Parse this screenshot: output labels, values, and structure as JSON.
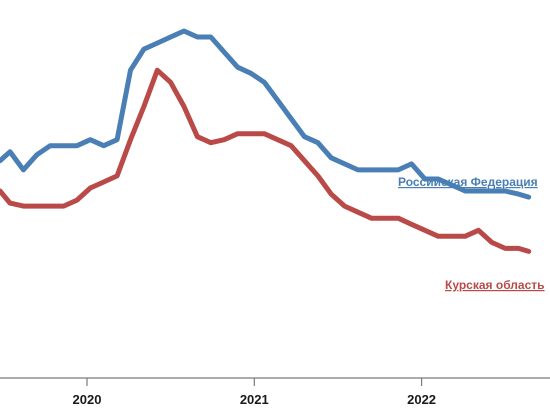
{
  "chart_data": {
    "type": "line",
    "title": "",
    "xlabel": "",
    "ylabel": "",
    "grid": false,
    "x_ticks": [
      {
        "label": "2020",
        "x": 2020.0
      },
      {
        "label": "2021",
        "x": 2021.0
      },
      {
        "label": "2022",
        "x": 2022.0
      }
    ],
    "xlim": [
      2019.48,
      2022.66
    ],
    "ylim": [
      0,
      100
    ],
    "series": [
      {
        "name": "Российская Федерация",
        "color": "#4a7fb5",
        "x": [
          2019.48,
          2019.54,
          2019.62,
          2019.7,
          2019.78,
          2019.86,
          2019.94,
          2020.02,
          2020.1,
          2020.18,
          2020.26,
          2020.34,
          2020.42,
          2020.5,
          2020.58,
          2020.66,
          2020.74,
          2020.82,
          2020.9,
          2020.98,
          2021.06,
          2021.14,
          2021.22,
          2021.3,
          2021.38,
          2021.46,
          2021.54,
          2021.62,
          2021.7,
          2021.78,
          2021.86,
          2021.94,
          2022.02,
          2022.1,
          2022.18,
          2022.26,
          2022.34,
          2022.42,
          2022.5,
          2022.58,
          2022.64
        ],
        "values": [
          58,
          61,
          55,
          60,
          63,
          63,
          63,
          65,
          63,
          65,
          88,
          95,
          97,
          99,
          101,
          99,
          99,
          94,
          89,
          87,
          84,
          78,
          72,
          66,
          64,
          59,
          57,
          55,
          55,
          55,
          55,
          57,
          52,
          52,
          50,
          48,
          48,
          48,
          48,
          47,
          46
        ]
      },
      {
        "name": "Курская область",
        "color": "#b94a48",
        "x": [
          2019.48,
          2019.54,
          2019.62,
          2019.7,
          2019.78,
          2019.86,
          2019.94,
          2020.02,
          2020.1,
          2020.18,
          2020.26,
          2020.34,
          2020.42,
          2020.5,
          2020.58,
          2020.66,
          2020.74,
          2020.82,
          2020.9,
          2020.98,
          2021.06,
          2021.14,
          2021.22,
          2021.3,
          2021.38,
          2021.46,
          2021.54,
          2021.62,
          2021.7,
          2021.78,
          2021.86,
          2021.94,
          2022.02,
          2022.1,
          2022.18,
          2022.26,
          2022.34,
          2022.42,
          2022.5,
          2022.58,
          2022.64
        ],
        "values": [
          48,
          44,
          43,
          43,
          43,
          43,
          45,
          49,
          51,
          53,
          65,
          76,
          88,
          84,
          76,
          66,
          64,
          65,
          67,
          67,
          67,
          65,
          63,
          58,
          53,
          47,
          43,
          41,
          39,
          39,
          39,
          37,
          35,
          33,
          33,
          33,
          35,
          31,
          29,
          29,
          28
        ]
      }
    ]
  }
}
